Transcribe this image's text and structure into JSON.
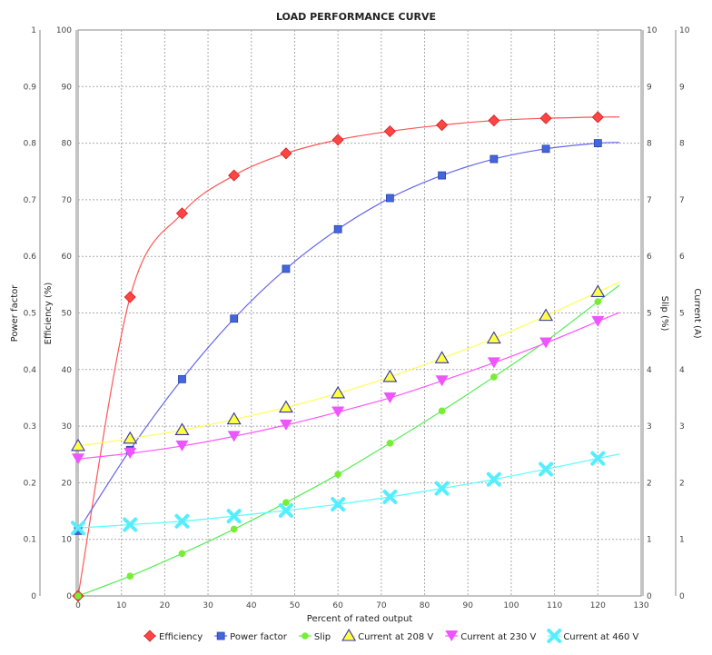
{
  "chart_data": {
    "type": "line",
    "title": "LOAD PERFORMANCE CURVE",
    "xlabel": "Percent of rated output",
    "xlim": [
      0,
      130
    ],
    "xticks": [
      0,
      10,
      20,
      30,
      40,
      50,
      60,
      70,
      80,
      90,
      100,
      110,
      120,
      130
    ],
    "grid": true,
    "legend_position": "bottom",
    "axes": {
      "power_factor": {
        "label": "Power factor",
        "range": [
          0,
          1
        ],
        "ticks": [
          "0",
          "0.1",
          "0.2",
          "0.3",
          "0.4",
          "0.5",
          "0.6",
          "0.7",
          "0.8",
          "0.9",
          "1"
        ]
      },
      "efficiency": {
        "label": "Efficiency (%)",
        "range": [
          0,
          100
        ],
        "ticks": [
          "0",
          "10",
          "20",
          "30",
          "40",
          "50",
          "60",
          "70",
          "80",
          "90",
          "100"
        ]
      },
      "slip": {
        "label": "Slip (%)",
        "range": [
          0,
          10
        ],
        "ticks": [
          "0",
          "1",
          "2",
          "3",
          "4",
          "5",
          "6",
          "7",
          "8",
          "9",
          "10"
        ]
      },
      "current": {
        "label": "Current (A)",
        "range": [
          0,
          10
        ],
        "ticks": [
          "0",
          "1",
          "2",
          "3",
          "4",
          "5",
          "6",
          "7",
          "8",
          "9",
          "10"
        ]
      }
    },
    "x": [
      0,
      12,
      24,
      36,
      48,
      60,
      72,
      84,
      96,
      108,
      120
    ],
    "series": [
      {
        "name": "Efficiency",
        "axis": "efficiency",
        "scale": 100,
        "color": "#ff4444",
        "marker": "diamond",
        "line": "#ff5555",
        "values": [
          0,
          52.8,
          67.6,
          74.3,
          78.2,
          80.6,
          82.1,
          83.2,
          84.0,
          84.4,
          84.6
        ]
      },
      {
        "name": "Power factor",
        "axis": "power_factor",
        "scale": 1,
        "color": "#4466dd",
        "marker": "square",
        "line": "#6666ee",
        "values": [
          0.115,
          0.258,
          0.383,
          0.49,
          0.578,
          0.648,
          0.703,
          0.743,
          0.772,
          0.79,
          0.8
        ]
      },
      {
        "name": "Slip",
        "axis": "slip",
        "scale": 10,
        "color": "#77ee33",
        "marker": "circle",
        "line": "#55ee55",
        "values": [
          0,
          0.35,
          0.75,
          1.18,
          1.65,
          2.15,
          2.7,
          3.27,
          3.87,
          4.5,
          5.2
        ]
      },
      {
        "name": "Current at 208 V",
        "axis": "current",
        "scale": 10,
        "color": "#ffff44",
        "marker": "triangle-up",
        "line": "#ffff55",
        "values": [
          2.65,
          2.78,
          2.93,
          3.12,
          3.33,
          3.58,
          3.87,
          4.2,
          4.55,
          4.95,
          5.37
        ]
      },
      {
        "name": "Current at 230 V",
        "axis": "current",
        "scale": 10,
        "color": "#ee55ff",
        "marker": "triangle-down",
        "line": "#ff55ff",
        "values": [
          2.42,
          2.52,
          2.65,
          2.82,
          3.02,
          3.25,
          3.5,
          3.8,
          4.12,
          4.47,
          4.85
        ]
      },
      {
        "name": "Current at 460 V",
        "axis": "current",
        "scale": 10,
        "color": "#55eeff",
        "marker": "x",
        "line": "#55ffff",
        "values": [
          1.2,
          1.26,
          1.32,
          1.41,
          1.51,
          1.62,
          1.75,
          1.9,
          2.06,
          2.24,
          2.43
        ]
      }
    ]
  }
}
